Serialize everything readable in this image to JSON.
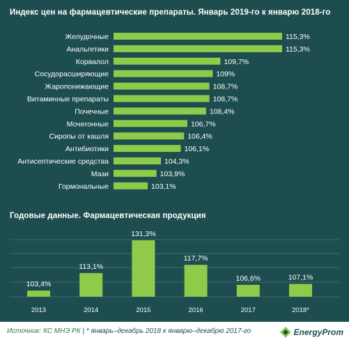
{
  "colors": {
    "background": "#1e4d4f",
    "bar": "#8ecb4a",
    "text": "#ffffff",
    "footer_bg": "#ffffff",
    "footer_text": "#1e4d4f",
    "source_text": "#2b7a3c"
  },
  "chart_data": [
    {
      "type": "bar",
      "orientation": "horizontal",
      "title": "Индекс цен на фармацевтические  препараты. Январь  2019-го к январю  2018-го",
      "categories": [
        "Желудочные",
        "Анальгетики",
        "Корвалол",
        "Сосудорасширяющие",
        "Жаропонижающие",
        "Витаминные препараты",
        "Почечные",
        "Мочегонные",
        "Сиропы от кашля",
        "Антибиотики",
        "Антисептические  средства",
        "Мази",
        "Гормональные"
      ],
      "values": [
        115.3,
        115.3,
        109.7,
        109.0,
        108.7,
        108.7,
        108.4,
        106.7,
        106.4,
        106.1,
        104.3,
        103.9,
        103.1
      ],
      "data_labels": [
        "115,3%",
        "115,3%",
        "109,7%",
        "109%",
        "108,7%",
        "108,7%",
        "108,4%",
        "106,7%",
        "106,4%",
        "106,1%",
        "104,3%",
        "103,9%",
        "103,1%"
      ],
      "unit": "%",
      "axis_min": 100,
      "grid": false
    },
    {
      "type": "bar",
      "orientation": "vertical",
      "title": "Годовые данные. Фармацевтическая  продукция",
      "categories": [
        "2013",
        "2014",
        "2015",
        "2016",
        "2017",
        "2018*"
      ],
      "values": [
        103.4,
        113.1,
        131.3,
        117.7,
        106.6,
        107.1
      ],
      "data_labels": [
        "103,4%",
        "113,1%",
        "131,3%",
        "117,7%",
        "106,6%",
        "107,1%"
      ],
      "unit": "%",
      "axis_min": 100,
      "grid": true
    }
  ],
  "footer": {
    "source": "Источник: КС МНЭ РК",
    "separator": "|",
    "note": "* январь–декабрь 2018 к январю–декабрю 2017-го",
    "logo_text": "EnergyProm",
    "logo_icon": "energyprom-logo-icon"
  }
}
